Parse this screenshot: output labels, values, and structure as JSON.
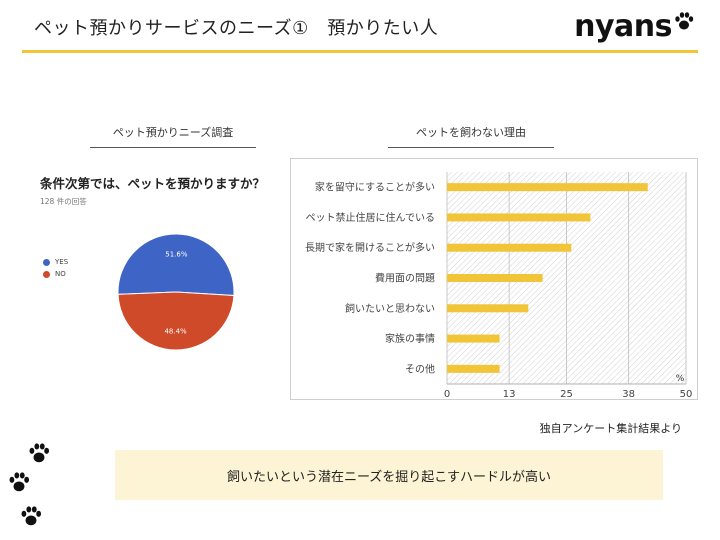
{
  "slide": {
    "title": "ペット預かりサービスのニーズ①　預かりたい人",
    "logo_text": "nyans",
    "accent_color": "#f2c438"
  },
  "left_section": {
    "label": "ペット預かりニーズ調査",
    "question": "条件次第では、ペットを預かりますか？",
    "response_count": "128 件の回答"
  },
  "right_section": {
    "label": "ペットを飼わない理由"
  },
  "source_note": "独自アンケート集計結果より",
  "callout": "飼いたいという潜在ニーズを掘り起こすハードルが高い",
  "decor_icons": [
    "paw-icon",
    "paw-icon",
    "paw-icon",
    "paw-icon"
  ],
  "chart_data": [
    {
      "type": "pie",
      "title": "条件次第では、ペットを預かりますか？",
      "slices": [
        {
          "label": "YES",
          "value": 51.6,
          "display": "51.6%",
          "color": "#3e64c6"
        },
        {
          "label": "NO",
          "value": 48.4,
          "display": "48.4%",
          "color": "#cf4a29"
        }
      ]
    },
    {
      "type": "bar",
      "orientation": "horizontal",
      "title": "ペットを飼わない理由",
      "categories": [
        "家を留守にすることが多い",
        "ペット禁止住居に住んでいる",
        "長期で家を開けることが多い",
        "費用面の問題",
        "飼いたいと思わない",
        "家族の事情",
        "その他"
      ],
      "values": [
        42,
        30,
        26,
        20,
        17,
        11,
        11
      ],
      "xlim": [
        0,
        50
      ],
      "xticks": [
        0,
        13,
        25,
        38,
        50
      ],
      "bar_color": "#f2c438",
      "grid": true,
      "clipped_corner_label": "%"
    }
  ]
}
